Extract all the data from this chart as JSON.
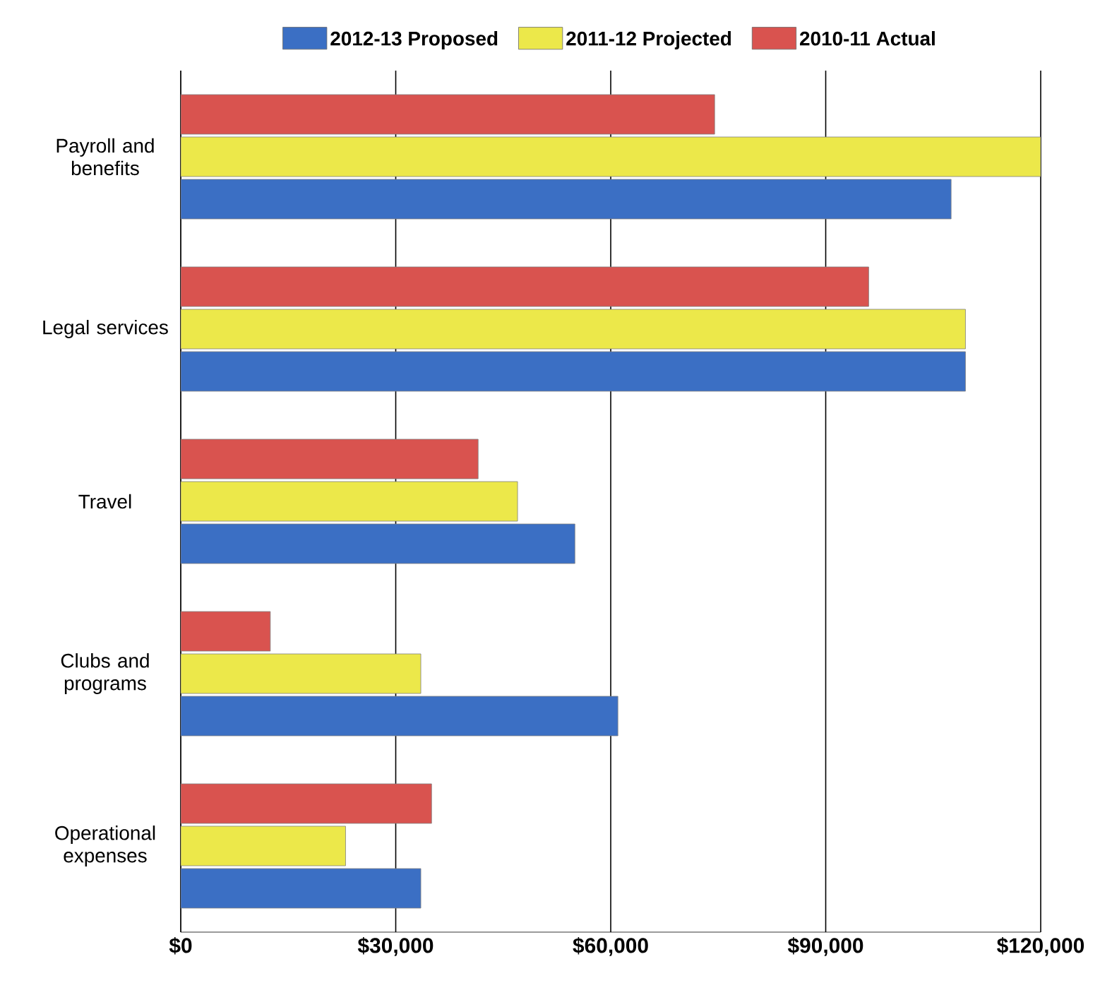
{
  "chart_data": {
    "type": "bar",
    "orientation": "horizontal",
    "categories": [
      "Payroll and benefits",
      "Legal services",
      "Travel",
      "Clubs and programs",
      "Operational expenses"
    ],
    "series": [
      {
        "name": "2012-13 Proposed",
        "color": "#3b6fc4",
        "values": [
          107500,
          109500,
          55000,
          61000,
          33500
        ]
      },
      {
        "name": "2011-12 Projected",
        "color": "#ece84a",
        "values": [
          120000,
          109500,
          47000,
          33500,
          23000
        ]
      },
      {
        "name": "2010-11 Actual",
        "color": "#d9534f",
        "values": [
          74500,
          96000,
          41500,
          12500,
          35000
        ]
      }
    ],
    "xlim": [
      0,
      120000
    ],
    "xticks": [
      {
        "value": 0,
        "label": "$0"
      },
      {
        "value": 30000,
        "label": "$30,000"
      },
      {
        "value": 60000,
        "label": "$60,000"
      },
      {
        "value": 90000,
        "label": "$90,000"
      },
      {
        "value": 120000,
        "label": "$120,000"
      }
    ],
    "grid": "x",
    "legend": "top"
  }
}
